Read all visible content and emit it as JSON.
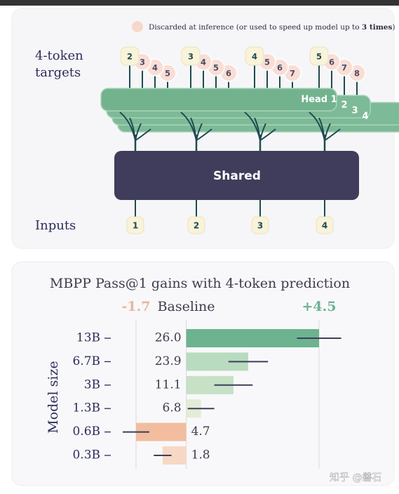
{
  "diagram": {
    "legend": {
      "text": "Discarded at inference (or used to speed up model up to ",
      "bold": "3 times",
      "end": ")"
    },
    "targets_label": [
      "4-token",
      "targets"
    ],
    "target_groups": [
      [
        "2",
        "3",
        "4",
        "5"
      ],
      [
        "3",
        "4",
        "5",
        "6"
      ],
      [
        "4",
        "5",
        "6",
        "7"
      ],
      [
        "5",
        "6",
        "7",
        "8"
      ]
    ],
    "heads": [
      "Head 1",
      "2",
      "3",
      "4"
    ],
    "shared": "Shared",
    "inputs_label": "Inputs",
    "inputs": [
      "1",
      "2",
      "3",
      "4"
    ]
  },
  "chart_data": {
    "type": "hbar",
    "title": "MBPP Pass@1  gains with 4-token prediction",
    "ylabel": "Model size",
    "categories": [
      "13B",
      "6.7B",
      "3B",
      "1.3B",
      "0.6B",
      "0.3B"
    ],
    "values": [
      4.5,
      2.1,
      1.6,
      0.5,
      -1.7,
      -0.8
    ],
    "errors": [
      0.75,
      0.67,
      0.65,
      0.45,
      0.45,
      0.3
    ],
    "baseline_labels": [
      "26.0",
      "23.9",
      "11.1",
      "6.8",
      "4.7",
      "1.8"
    ],
    "colors": [
      "#6db38f",
      "#b9dbbf",
      "#c6e1c6",
      "#e3ecd6",
      "#f2bd9f",
      "#f6d8c5"
    ],
    "xlim": [
      -1.7,
      4.5
    ],
    "xticks": [
      -1.7,
      {
        "value": 0,
        "label": "Baseline"
      },
      {
        "value": 4.5,
        "label": "+4.5"
      }
    ],
    "tick_colors": [
      "#e9b69a",
      "#3d3d4d",
      "#6db38f"
    ],
    "grid": true
  },
  "watermark": "知乎 @磐石"
}
